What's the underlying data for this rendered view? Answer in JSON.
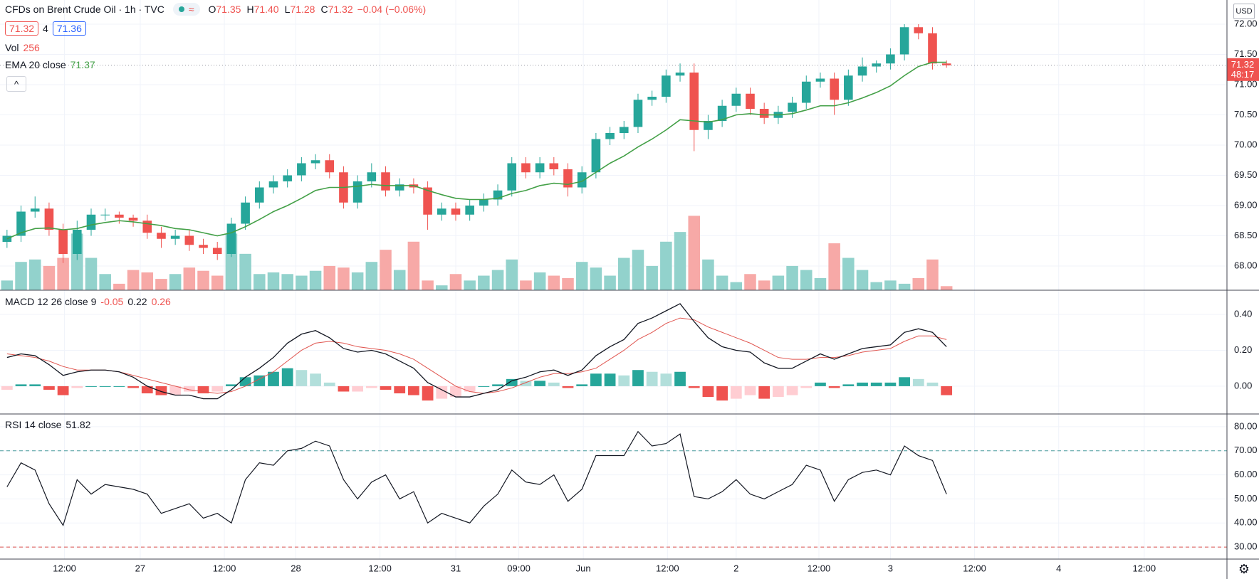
{
  "header": {
    "title": "CFDs on Brent Crude Oil · 1h · TVC",
    "ohlc": [
      {
        "name": "O",
        "value": 71.35
      },
      {
        "name": "H",
        "value": 71.4,
        "label": "71.40"
      },
      {
        "name": "L",
        "value": 71.28
      },
      {
        "name": "C",
        "value": 71.32
      }
    ],
    "change": "−0.04 (−0.06%)",
    "bid": 71.32,
    "spread": 4,
    "ask": 71.36,
    "currency": "USD"
  },
  "legends": {
    "volume": {
      "name": "Vol",
      "value": 256
    },
    "ema": {
      "name": "EMA 20 close",
      "value": 71.37
    },
    "macd": {
      "name": "MACD 12 26 close 9",
      "values": [
        -0.05,
        0.22,
        0.26
      ]
    },
    "rsi": {
      "name": "RSI 14 close",
      "value": 51.82
    }
  },
  "chart_data": [
    {
      "type": "candlestick",
      "x": [
        0,
        1,
        2,
        3,
        4,
        5,
        6,
        7,
        8,
        9,
        10,
        11,
        12,
        13,
        14,
        15,
        16,
        17,
        18,
        19,
        20,
        21,
        22,
        23,
        24,
        25,
        26,
        27,
        28,
        29,
        30,
        31,
        32,
        33,
        34,
        35,
        36,
        37,
        38,
        39,
        40,
        41,
        42,
        43,
        44,
        45,
        46,
        47,
        48,
        49,
        50,
        51,
        52,
        53,
        54,
        55,
        56,
        57,
        58,
        59,
        60,
        61,
        62,
        63,
        64,
        65,
        66,
        67
      ],
      "xlim": [
        -0.5,
        87
      ],
      "xticks": [
        {
          "value": 4.1,
          "label": "12:00"
        },
        {
          "value": 9.5,
          "label": "27"
        },
        {
          "value": 15.5,
          "label": "12:00"
        },
        {
          "value": 20.6,
          "label": "28"
        },
        {
          "value": 26.6,
          "label": "12:00"
        },
        {
          "value": 32,
          "label": "31"
        },
        {
          "value": 36.5,
          "label": "09:00"
        },
        {
          "value": 41.1,
          "label": "Jun"
        },
        {
          "value": 47.1,
          "label": "12:00"
        },
        {
          "value": 52,
          "label": "2"
        },
        {
          "value": 57.9,
          "label": "12:00"
        },
        {
          "value": 63,
          "label": "3"
        },
        {
          "value": 69,
          "label": "12:00"
        },
        {
          "value": 75,
          "label": "4"
        },
        {
          "value": 81.1,
          "label": "12:00"
        }
      ],
      "open": [
        68.4,
        68.5,
        68.9,
        68.95,
        68.6,
        68.2,
        68.6,
        68.85,
        68.85,
        68.8,
        68.75,
        68.55,
        68.45,
        68.5,
        68.35,
        68.3,
        68.2,
        68.7,
        69.05,
        69.3,
        69.4,
        69.5,
        69.7,
        69.75,
        69.55,
        69.05,
        69.4,
        69.55,
        69.25,
        69.35,
        69.3,
        68.85,
        68.95,
        68.85,
        69.0,
        69.1,
        69.25,
        69.7,
        69.55,
        69.7,
        69.6,
        69.3,
        69.55,
        70.1,
        70.2,
        70.3,
        70.75,
        70.8,
        71.15,
        71.2,
        70.25,
        70.4,
        70.65,
        70.85,
        70.6,
        70.45,
        70.55,
        70.7,
        71.05,
        71.1,
        70.75,
        71.15,
        71.3,
        71.35,
        71.5,
        71.95,
        71.85,
        71.35
      ],
      "high": [
        68.6,
        69.0,
        69.15,
        69.05,
        68.7,
        68.75,
        68.95,
        68.95,
        68.9,
        68.85,
        68.85,
        68.65,
        68.6,
        68.6,
        68.45,
        68.4,
        68.8,
        69.15,
        69.4,
        69.5,
        69.6,
        69.8,
        69.85,
        69.85,
        69.65,
        69.5,
        69.7,
        69.65,
        69.45,
        69.45,
        69.4,
        69.05,
        69.05,
        69.1,
        69.2,
        69.35,
        69.8,
        69.8,
        69.8,
        69.8,
        69.7,
        69.65,
        70.2,
        70.3,
        70.4,
        70.85,
        70.9,
        71.25,
        71.35,
        71.35,
        70.5,
        70.75,
        70.95,
        70.95,
        70.7,
        70.65,
        70.8,
        71.15,
        71.2,
        71.2,
        71.25,
        71.45,
        71.4,
        71.6,
        72.0,
        72.0,
        71.95,
        71.4
      ],
      "low": [
        68.3,
        68.4,
        68.8,
        68.5,
        68.05,
        68.1,
        68.5,
        68.75,
        68.7,
        68.65,
        68.45,
        68.3,
        68.35,
        68.25,
        68.2,
        68.1,
        68.15,
        68.6,
        68.95,
        69.2,
        69.3,
        69.4,
        69.6,
        69.45,
        68.95,
        68.95,
        69.3,
        69.15,
        69.15,
        69.2,
        68.6,
        68.75,
        68.75,
        68.75,
        68.9,
        69.0,
        69.15,
        69.45,
        69.45,
        69.5,
        69.15,
        69.2,
        69.45,
        70.0,
        70.1,
        70.2,
        70.65,
        70.7,
        71.05,
        69.9,
        70.1,
        70.3,
        70.55,
        70.5,
        70.35,
        70.35,
        70.45,
        70.6,
        70.95,
        70.5,
        70.65,
        71.05,
        71.2,
        71.25,
        71.4,
        71.75,
        71.25,
        71.28
      ],
      "close": [
        68.5,
        68.9,
        68.95,
        68.6,
        68.2,
        68.6,
        68.85,
        68.85,
        68.8,
        68.75,
        68.55,
        68.45,
        68.5,
        68.35,
        68.3,
        68.2,
        68.7,
        69.05,
        69.3,
        69.4,
        69.5,
        69.7,
        69.75,
        69.55,
        69.05,
        69.4,
        69.55,
        69.25,
        69.35,
        69.3,
        68.85,
        68.95,
        68.85,
        69.0,
        69.1,
        69.25,
        69.7,
        69.55,
        69.7,
        69.6,
        69.3,
        69.55,
        70.1,
        70.2,
        70.3,
        70.75,
        70.8,
        71.15,
        71.2,
        70.25,
        70.4,
        70.65,
        70.85,
        70.6,
        70.45,
        70.55,
        70.7,
        71.05,
        71.1,
        70.75,
        71.15,
        71.3,
        71.35,
        71.5,
        71.95,
        71.85,
        71.35,
        71.32
      ],
      "ema": [
        68.45,
        68.55,
        68.62,
        68.63,
        68.6,
        68.62,
        68.68,
        68.72,
        68.75,
        68.73,
        68.7,
        68.67,
        68.62,
        68.6,
        68.55,
        68.5,
        68.55,
        68.65,
        68.77,
        68.9,
        69.0,
        69.12,
        69.25,
        69.3,
        69.3,
        69.32,
        69.35,
        69.33,
        69.33,
        69.33,
        69.25,
        69.18,
        69.12,
        69.1,
        69.1,
        69.12,
        69.2,
        69.25,
        69.33,
        69.37,
        69.35,
        69.4,
        69.55,
        69.7,
        69.82,
        69.97,
        70.1,
        70.25,
        70.42,
        70.4,
        70.38,
        70.42,
        70.5,
        70.52,
        70.5,
        70.5,
        70.52,
        70.58,
        70.65,
        70.65,
        70.7,
        70.78,
        70.87,
        70.98,
        71.15,
        71.3,
        71.37,
        71.37
      ],
      "volume": [
        612,
        1785,
        1938,
        1530,
        2040,
        3570,
        2040,
        1020,
        408,
        1275,
        1122,
        714,
        1020,
        1428,
        1224,
        918,
        3570,
        2295,
        1020,
        1122,
        1020,
        918,
        1224,
        1530,
        1428,
        1122,
        1785,
        2550,
        1275,
        3060,
        612,
        306,
        1020,
        612,
        918,
        1275,
        1938,
        612,
        1122,
        918,
        765,
        1785,
        1428,
        918,
        2040,
        2550,
        1530,
        3060,
        3672,
        4692,
        1938,
        918,
        510,
        1020,
        612,
        918,
        1530,
        1275,
        765,
        2958,
        2040,
        1275,
        510,
        612,
        408,
        765,
        1938,
        256
      ],
      "volume_lim": [
        0,
        4800
      ],
      "ylim": [
        67.6,
        72.4
      ],
      "yticks": [
        {
          "value": 72,
          "label": "72.00"
        },
        {
          "value": 71.5,
          "label": "71.50"
        },
        {
          "value": 71,
          "label": "71.00"
        },
        {
          "value": 70.5,
          "label": "70.50"
        },
        {
          "value": 70,
          "label": "70.00"
        },
        {
          "value": 69.5,
          "label": "69.50"
        },
        {
          "value": 69,
          "label": "69.00"
        },
        {
          "value": 68.5,
          "label": "68.50"
        },
        {
          "value": 68,
          "label": "68.00"
        }
      ],
      "last_price": 71.32,
      "countdown": "48:17",
      "up_color": "#26a69a",
      "down_color": "#ef5350",
      "volume_up_color": "#92d2cc",
      "volume_down_color": "#f7a9a7",
      "ema_color": "#43a047",
      "grid": true
    },
    {
      "type": "macd",
      "macd": [
        0.16,
        0.18,
        0.17,
        0.12,
        0.06,
        0.08,
        0.09,
        0.09,
        0.08,
        0.05,
        0.0,
        -0.03,
        -0.05,
        -0.05,
        -0.07,
        -0.07,
        -0.02,
        0.05,
        0.1,
        0.16,
        0.24,
        0.29,
        0.31,
        0.27,
        0.21,
        0.19,
        0.2,
        0.18,
        0.14,
        0.1,
        0.02,
        -0.02,
        -0.06,
        -0.06,
        -0.04,
        -0.02,
        0.03,
        0.05,
        0.08,
        0.09,
        0.06,
        0.09,
        0.17,
        0.22,
        0.26,
        0.35,
        0.38,
        0.42,
        0.46,
        0.36,
        0.27,
        0.22,
        0.2,
        0.19,
        0.13,
        0.1,
        0.1,
        0.14,
        0.18,
        0.15,
        0.18,
        0.21,
        0.22,
        0.23,
        0.3,
        0.32,
        0.3,
        0.22
      ],
      "signal": [
        0.18,
        0.17,
        0.16,
        0.14,
        0.11,
        0.09,
        0.09,
        0.09,
        0.08,
        0.06,
        0.04,
        0.02,
        0.0,
        -0.02,
        -0.03,
        -0.04,
        -0.03,
        0.0,
        0.04,
        0.08,
        0.14,
        0.2,
        0.24,
        0.25,
        0.24,
        0.22,
        0.21,
        0.2,
        0.18,
        0.15,
        0.1,
        0.05,
        0.0,
        -0.03,
        -0.04,
        -0.03,
        -0.01,
        0.02,
        0.05,
        0.07,
        0.07,
        0.08,
        0.1,
        0.15,
        0.2,
        0.26,
        0.3,
        0.35,
        0.38,
        0.37,
        0.33,
        0.3,
        0.27,
        0.24,
        0.2,
        0.16,
        0.15,
        0.15,
        0.16,
        0.16,
        0.17,
        0.19,
        0.2,
        0.21,
        0.25,
        0.28,
        0.28,
        0.26
      ],
      "histogram": [
        -0.02,
        0.01,
        0.01,
        -0.02,
        -0.05,
        -0.01,
        0,
        0,
        0,
        -0.01,
        -0.04,
        -0.05,
        -0.05,
        -0.03,
        -0.04,
        -0.03,
        0.01,
        0.05,
        0.06,
        0.08,
        0.1,
        0.09,
        0.07,
        0.02,
        -0.03,
        -0.03,
        -0.01,
        -0.02,
        -0.04,
        -0.05,
        -0.08,
        -0.07,
        -0.06,
        -0.03,
        0.0,
        0.01,
        0.04,
        0.03,
        0.03,
        0.02,
        -0.01,
        0.01,
        0.07,
        0.07,
        0.06,
        0.09,
        0.08,
        0.07,
        0.08,
        -0.01,
        -0.06,
        -0.08,
        -0.07,
        -0.05,
        -0.07,
        -0.06,
        -0.05,
        -0.01,
        0.02,
        -0.01,
        0.01,
        0.02,
        0.02,
        0.02,
        0.05,
        0.04,
        0.02,
        -0.05
      ],
      "ylim": [
        -0.155,
        0.535
      ],
      "yticks": [
        {
          "value": 0.4,
          "label": "0.40"
        },
        {
          "value": 0.2,
          "label": "0.20"
        },
        {
          "value": 0,
          "label": "0.00"
        }
      ],
      "macd_color": "#131722",
      "signal_color": "#e0554f",
      "hist_colors": [
        "#26a69a",
        "#b2dfdb",
        "#ef5350",
        "#ffcdd2"
      ],
      "grid": true
    },
    {
      "type": "line",
      "values": [
        55,
        65,
        62,
        48,
        39,
        58,
        52,
        56,
        55,
        54,
        52,
        44,
        46,
        48,
        42,
        44,
        40,
        58,
        65,
        64,
        70,
        71,
        74,
        72,
        58,
        50,
        57,
        60,
        50,
        53,
        40,
        44,
        42,
        40,
        47,
        52,
        62,
        57,
        56,
        60,
        49,
        54,
        68,
        68,
        68,
        78,
        72,
        73,
        77,
        51,
        50,
        53,
        58,
        52,
        50,
        53,
        56,
        64,
        62,
        49,
        58,
        61,
        62,
        60,
        72,
        68,
        66,
        52
      ],
      "ylim": [
        25,
        85.3
      ],
      "yticks": [
        {
          "value": 80,
          "label": "80.00"
        },
        {
          "value": 70,
          "label": "70.00"
        },
        {
          "value": 60,
          "label": "60.00"
        },
        {
          "value": 50,
          "label": "50.00"
        },
        {
          "value": 40,
          "label": "40.00"
        },
        {
          "value": 30,
          "label": "30.00"
        }
      ],
      "bands": [
        70,
        30
      ],
      "band_colors": [
        "#4a9c9c",
        "#d9534f"
      ],
      "color": "#131722",
      "grid": true
    }
  ]
}
